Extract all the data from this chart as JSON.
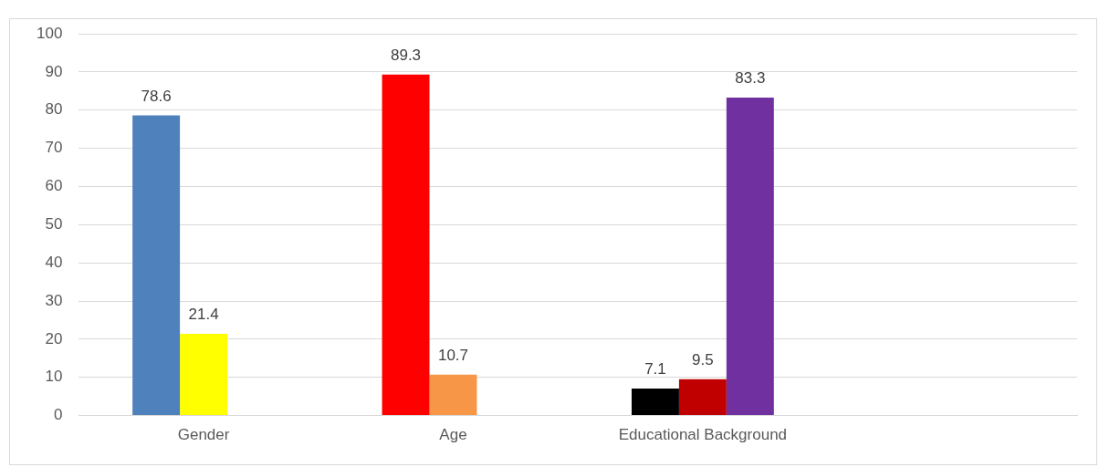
{
  "chart_data": {
    "type": "bar",
    "categories": [
      "Gender",
      "Age",
      "Educational Background",
      null
    ],
    "series": [
      {
        "colors": [
          "#4f81bd",
          "#ff0000",
          "#000000",
          null
        ],
        "values": [
          78.6,
          89.3,
          7.1,
          null
        ]
      },
      {
        "colors": [
          "#ffff00",
          "#f79646",
          "#c00000",
          null
        ],
        "values": [
          21.4,
          10.7,
          9.5,
          null
        ]
      },
      {
        "colors": [
          null,
          null,
          "#7030a0",
          null
        ],
        "values": [
          null,
          null,
          83.3,
          null
        ]
      }
    ],
    "ylim": [
      0,
      100
    ],
    "yticks": [
      0,
      10,
      20,
      30,
      40,
      50,
      60,
      70,
      80,
      90,
      100
    ],
    "grid": "y",
    "legend": false,
    "data_labels": true
  }
}
